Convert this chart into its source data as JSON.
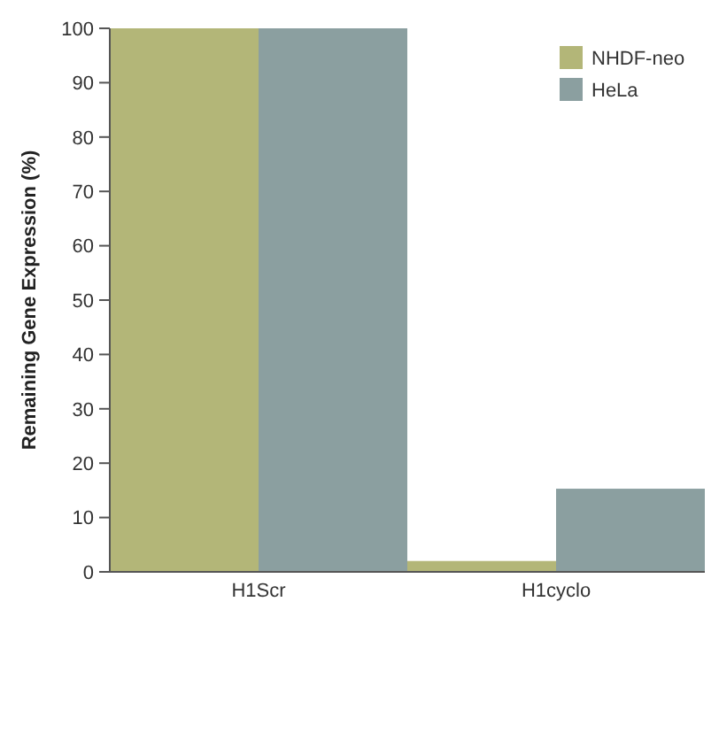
{
  "chart_data": {
    "type": "bar",
    "ylabel": "Remaining Gene Expression (%)",
    "categories": [
      "H1Scr",
      "H1cyclo"
    ],
    "series": [
      {
        "name": "NHDF-neo",
        "color": "#b3b678",
        "values": [
          100,
          2
        ]
      },
      {
        "name": "HeLa",
        "color": "#8b9fa0",
        "values": [
          100,
          15.3
        ]
      }
    ],
    "ylim": [
      0,
      100
    ],
    "yticks": [
      0,
      10,
      20,
      30,
      40,
      50,
      60,
      70,
      80,
      90,
      100
    ],
    "grid": false,
    "legend": "top right"
  }
}
